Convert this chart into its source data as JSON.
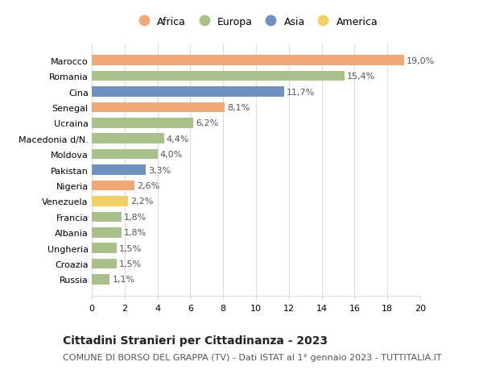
{
  "categories": [
    "Marocco",
    "Romania",
    "Cina",
    "Senegal",
    "Ucraina",
    "Macedonia d/N.",
    "Moldova",
    "Pakistan",
    "Nigeria",
    "Venezuela",
    "Francia",
    "Albania",
    "Ungheria",
    "Croazia",
    "Russia"
  ],
  "values": [
    19.0,
    15.4,
    11.7,
    8.1,
    6.2,
    4.4,
    4.0,
    3.3,
    2.6,
    2.2,
    1.8,
    1.8,
    1.5,
    1.5,
    1.1
  ],
  "labels": [
    "19,0%",
    "15,4%",
    "11,7%",
    "8,1%",
    "6,2%",
    "4,4%",
    "4,0%",
    "3,3%",
    "2,6%",
    "2,2%",
    "1,8%",
    "1,8%",
    "1,5%",
    "1,5%",
    "1,1%"
  ],
  "continents": [
    "Africa",
    "Europa",
    "Asia",
    "Africa",
    "Europa",
    "Europa",
    "Europa",
    "Asia",
    "Africa",
    "America",
    "Europa",
    "Europa",
    "Europa",
    "Europa",
    "Europa"
  ],
  "colors": {
    "Africa": "#F0A878",
    "Europa": "#A8C08A",
    "Asia": "#7090C0",
    "America": "#F0D060"
  },
  "legend_order": [
    "Africa",
    "Europa",
    "Asia",
    "America"
  ],
  "xlim": [
    0,
    20
  ],
  "xticks": [
    0,
    2,
    4,
    6,
    8,
    10,
    12,
    14,
    16,
    18,
    20
  ],
  "title": "Cittadini Stranieri per Cittadinanza - 2023",
  "subtitle": "COMUNE DI BORSO DEL GRAPPA (TV) - Dati ISTAT al 1° gennaio 2023 - TUTTITALIA.IT",
  "background_color": "#ffffff",
  "grid_color": "#dddddd",
  "bar_height": 0.65,
  "title_fontsize": 10,
  "subtitle_fontsize": 8,
  "label_fontsize": 8,
  "tick_fontsize": 8,
  "legend_fontsize": 9
}
